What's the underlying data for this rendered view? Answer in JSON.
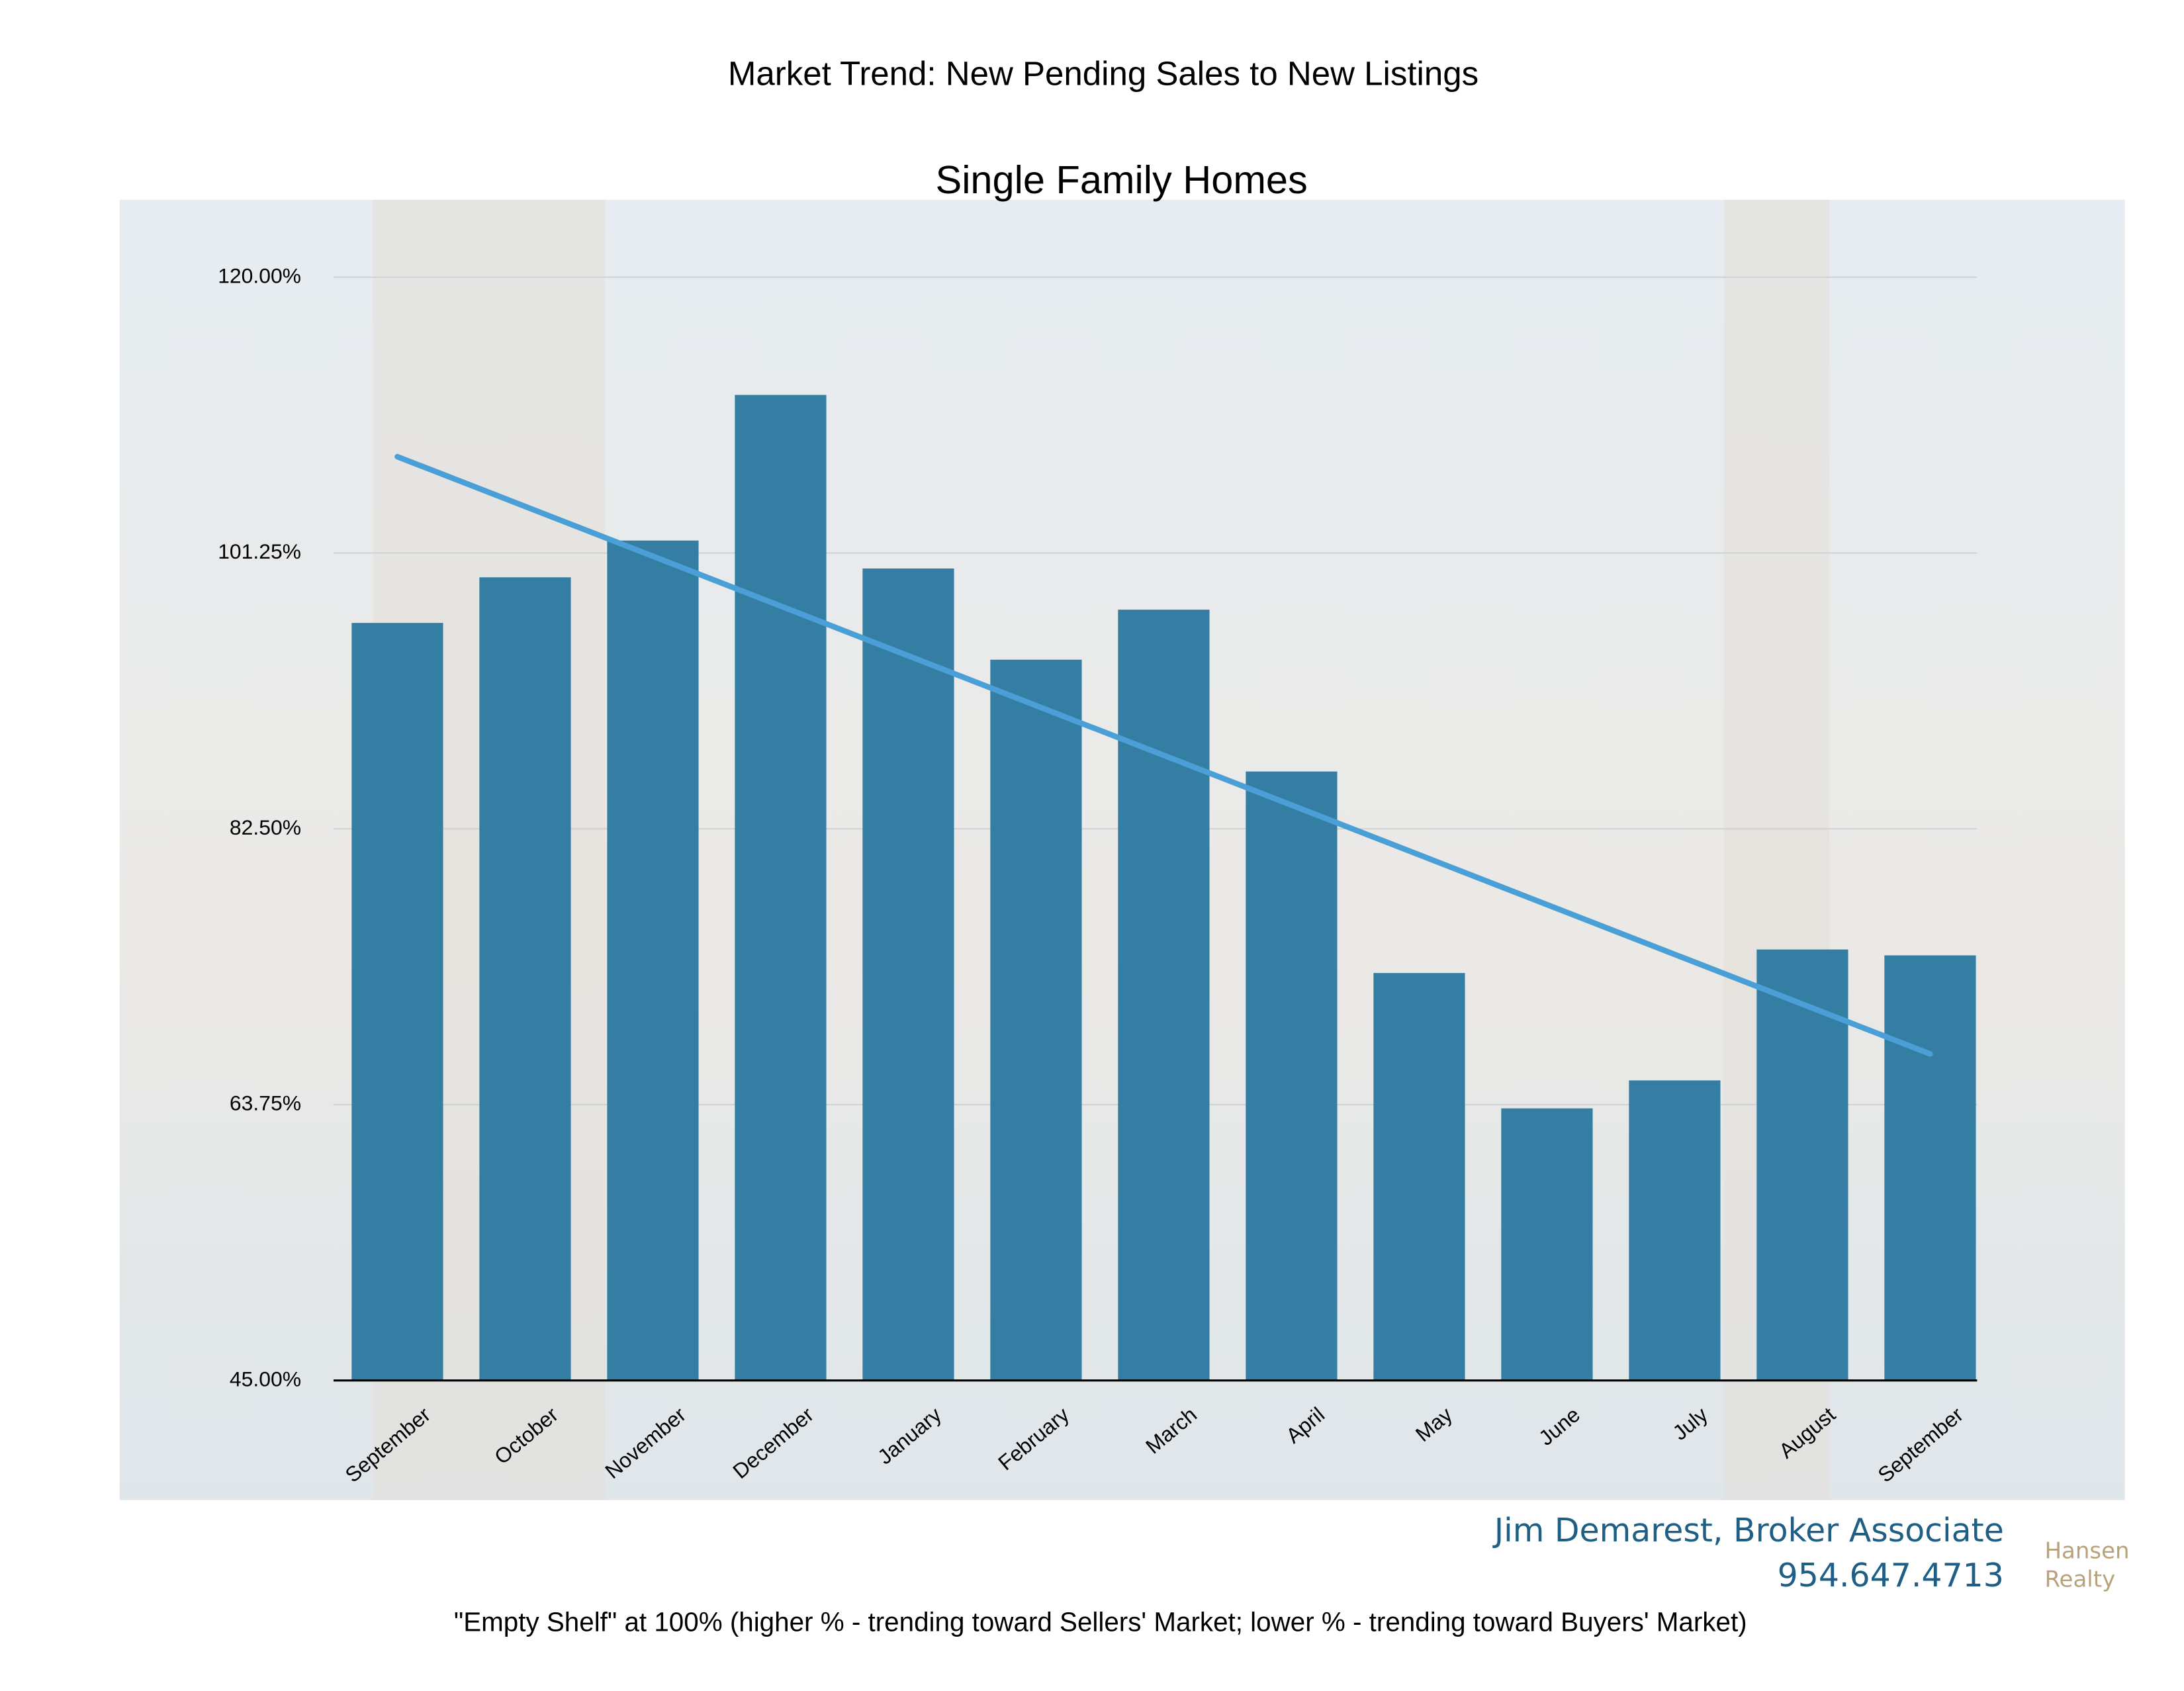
{
  "chart_data": {
    "type": "bar",
    "title": "Market Trend:  New Pending Sales  to New Listings",
    "subtitle": "Single Family Homes",
    "categories": [
      "September",
      "October",
      "November",
      "December",
      "January",
      "February",
      "March",
      "April",
      "May",
      "June",
      "July",
      "August",
      "September"
    ],
    "values": [
      96.5,
      99.6,
      102.1,
      112.0,
      100.2,
      94.0,
      97.4,
      86.4,
      72.7,
      63.5,
      65.4,
      74.3,
      73.9
    ],
    "color": "#357ea3",
    "trendline": {
      "start": 107.8,
      "end": 67.2,
      "color": "#4aa0d6"
    },
    "ylim": [
      45,
      120
    ],
    "yticks": [
      {
        "value": 45,
        "label": "45.00%"
      },
      {
        "value": 63.75,
        "label": "63.75%"
      },
      {
        "value": 82.5,
        "label": "82.50%"
      },
      {
        "value": 101.25,
        "label": "101.25%"
      },
      {
        "value": 120,
        "label": "120.00%"
      }
    ],
    "grid": true,
    "note": "\"Empty Shelf\" at 100% (higher % - trending toward Sellers' Market;     lower % -  trending toward Buyers' Market)",
    "agent": "Jim Demarest, Broker Associate",
    "phone": "954.647.4713",
    "brand": [
      "Hansen",
      "Realty"
    ]
  }
}
